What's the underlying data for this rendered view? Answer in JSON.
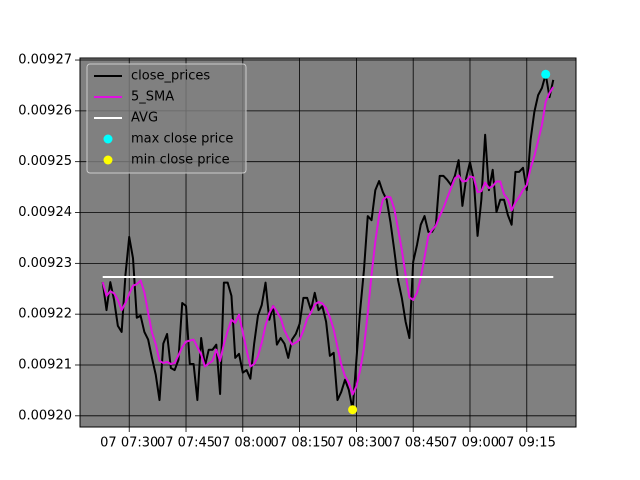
{
  "chart_data": {
    "type": "line",
    "x": [
      "07 07:23",
      "07 07:24",
      "07 07:25",
      "07 07:26",
      "07 07:27",
      "07 07:28",
      "07 07:29",
      "07 07:30",
      "07 07:31",
      "07 07:32",
      "07 07:33",
      "07 07:34",
      "07 07:35",
      "07 07:36",
      "07 07:37",
      "07 07:38",
      "07 07:39",
      "07 07:40",
      "07 07:41",
      "07 07:42",
      "07 07:43",
      "07 07:44",
      "07 07:45",
      "07 07:46",
      "07 07:47",
      "07 07:48",
      "07 07:49",
      "07 07:50",
      "07 07:51",
      "07 07:52",
      "07 07:53",
      "07 07:54",
      "07 07:55",
      "07 07:56",
      "07 07:57",
      "07 07:58",
      "07 07:59",
      "07 08:00",
      "07 08:01",
      "07 08:02",
      "07 08:03",
      "07 08:04",
      "07 08:05",
      "07 08:06",
      "07 08:07",
      "07 08:08",
      "07 08:09",
      "07 08:10",
      "07 08:11",
      "07 08:12",
      "07 08:13",
      "07 08:14",
      "07 08:15",
      "07 08:16",
      "07 08:17",
      "07 08:18",
      "07 08:19",
      "07 08:20",
      "07 08:21",
      "07 08:22",
      "07 08:23",
      "07 08:24",
      "07 08:25",
      "07 08:26",
      "07 08:27",
      "07 08:28",
      "07 08:29",
      "07 08:30",
      "07 08:31",
      "07 08:32",
      "07 08:33",
      "07 08:34",
      "07 08:35",
      "07 08:36",
      "07 08:37",
      "07 08:38",
      "07 08:39",
      "07 08:40",
      "07 08:41",
      "07 08:42",
      "07 08:43",
      "07 08:44",
      "07 08:45",
      "07 08:46",
      "07 08:47",
      "07 08:48",
      "07 08:49",
      "07 08:50",
      "07 08:51",
      "07 08:52",
      "07 08:53",
      "07 08:54",
      "07 08:55",
      "07 08:56",
      "07 08:57",
      "07 08:58",
      "07 08:59",
      "07 09:00",
      "07 09:01",
      "07 09:02",
      "07 09:03",
      "07 09:04",
      "07 09:05",
      "07 09:06",
      "07 09:07",
      "07 09:08",
      "07 09:09",
      "07 09:10",
      "07 09:11",
      "07 09:12",
      "07 09:13",
      "07 09:14",
      "07 09:15",
      "07 09:16",
      "07 09:17",
      "07 09:18",
      "07 09:19",
      "07 09:20",
      "07 09:21",
      "07 09:22"
    ],
    "series": [
      {
        "name": "close_prices",
        "color": "#000000",
        "values": [
          0.0092263,
          0.0092208,
          0.0092263,
          0.0092228,
          0.0092177,
          0.0092165,
          0.0092277,
          0.0092352,
          0.009231,
          0.0092193,
          0.0092197,
          0.0092165,
          0.009215,
          0.0092114,
          0.0092081,
          0.0092031,
          0.0092142,
          0.0092161,
          0.0092094,
          0.009209,
          0.009211,
          0.0092222,
          0.0092216,
          0.0092102,
          0.0092102,
          0.0092031,
          0.0092153,
          0.0092098,
          0.009213,
          0.009213,
          0.009214,
          0.0092043,
          0.0092262,
          0.0092262,
          0.0092236,
          0.0092114,
          0.0092122,
          0.0092085,
          0.009209,
          0.0092073,
          0.0092142,
          0.0092197,
          0.0092218,
          0.0092262,
          0.0092189,
          0.0092216,
          0.009214,
          0.0092153,
          0.0092142,
          0.0092114,
          0.009215,
          0.0092161,
          0.0092181,
          0.0092232,
          0.0092232,
          0.0092208,
          0.0092242,
          0.0092208,
          0.0092216,
          0.0092185,
          0.0092118,
          0.0092124,
          0.0092031,
          0.0092047,
          0.0092071,
          0.0092051,
          0.0092012,
          0.009211,
          0.0092208,
          0.0092287,
          0.0092393,
          0.0092385,
          0.0092444,
          0.0092462,
          0.009244,
          0.0092425,
          0.0092381,
          0.0092326,
          0.0092267,
          0.0092232,
          0.0092185,
          0.0092153,
          0.0092303,
          0.0092336,
          0.0092376,
          0.0092393,
          0.0092362,
          0.0092362,
          0.0092376,
          0.0092472,
          0.0092472,
          0.0092464,
          0.0092454,
          0.0092472,
          0.0092503,
          0.0092413,
          0.0092468,
          0.0092499,
          0.0092464,
          0.0092354,
          0.0092425,
          0.0092553,
          0.0092444,
          0.0092484,
          0.0092401,
          0.0092425,
          0.0092425,
          0.0092395,
          0.0092376,
          0.009248,
          0.009248,
          0.0092488,
          0.0092444,
          0.0092543,
          0.0092598,
          0.0092631,
          0.0092645,
          0.0092672,
          0.0092627,
          0.0092661
        ]
      },
      {
        "name": "5_SMA",
        "color": "#e010e0",
        "values": [
          0.0092263,
          0.0092236,
          0.0092245,
          0.0092241,
          0.0092228,
          0.0092208,
          0.0092222,
          0.009224,
          0.0092256,
          0.0092259,
          0.0092266,
          0.0092243,
          0.0092203,
          0.0092164,
          0.0092141,
          0.0092108,
          0.0092104,
          0.0092106,
          0.0092102,
          0.0092104,
          0.0092119,
          0.0092135,
          0.0092146,
          0.0092148,
          0.009215,
          0.0092135,
          0.0092121,
          0.0092097,
          0.0092103,
          0.0092108,
          0.009213,
          0.0092108,
          0.0092141,
          0.0092167,
          0.0092189,
          0.0092183,
          0.0092199,
          0.0092164,
          0.0092129,
          0.0092097,
          0.0092102,
          0.0092117,
          0.0092144,
          0.0092178,
          0.0092202,
          0.0092216,
          0.0092205,
          0.0092192,
          0.0092168,
          0.0092153,
          0.009214,
          0.0092144,
          0.009215,
          0.0092168,
          0.0092191,
          0.0092203,
          0.0092219,
          0.0092224,
          0.0092221,
          0.0092212,
          0.0092194,
          0.009217,
          0.0092135,
          0.0092101,
          0.0092078,
          0.0092065,
          0.0092042,
          0.0092058,
          0.009209,
          0.0092134,
          0.0092202,
          0.0092277,
          0.0092343,
          0.0092394,
          0.0092425,
          0.0092431,
          0.009243,
          0.0092407,
          0.0092368,
          0.0092326,
          0.0092278,
          0.0092233,
          0.0092228,
          0.0092242,
          0.0092271,
          0.0092312,
          0.0092354,
          0.0092366,
          0.0092374,
          0.0092393,
          0.0092409,
          0.0092429,
          0.0092448,
          0.0092467,
          0.0092473,
          0.0092461,
          0.0092462,
          0.0092471,
          0.0092469,
          0.009244,
          0.0092442,
          0.0092459,
          0.0092448,
          0.0092452,
          0.0092461,
          0.0092461,
          0.0092436,
          0.0092426,
          0.0092404,
          0.009242,
          0.0092431,
          0.0092444,
          0.0092454,
          0.0092487,
          0.0092511,
          0.0092541,
          0.0092572,
          0.0092618,
          0.0092635,
          0.0092647
        ]
      },
      {
        "name": "AVG",
        "color": "#ffffff",
        "value": 0.0092273
      },
      {
        "name": "max close price",
        "type": "scatter",
        "color": "#00ffff",
        "x": [
          "07 09:20"
        ],
        "values": [
          0.0092672
        ]
      },
      {
        "name": "min close price",
        "type": "scatter",
        "color": "#ffff00",
        "x": [
          "07 08:29"
        ],
        "values": [
          0.0092012
        ]
      }
    ],
    "xlim": [
      "07 07:17",
      "07 09:28"
    ],
    "xticks": [
      "07 07:30",
      "07 07:45",
      "07 08:00",
      "07 08:15",
      "07 08:30",
      "07 08:45",
      "07 09:00",
      "07 09:15"
    ],
    "ylim": [
      0.0091978,
      0.0092704
    ],
    "yticks": [
      {
        "value": 0.0092,
        "label": "0.00920"
      },
      0.00921,
      0.00922,
      0.00923,
      0.00924,
      0.00925,
      0.00926,
      0.00927
    ],
    "grid": true,
    "legend": "upper left",
    "background": "#808080"
  }
}
